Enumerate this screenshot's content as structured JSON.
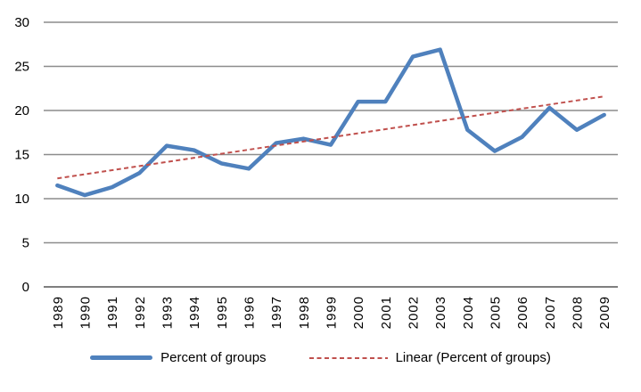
{
  "chart_data": {
    "type": "line",
    "title": "",
    "categories": [
      "1989",
      "1990",
      "1991",
      "1992",
      "1993",
      "1994",
      "1995",
      "1996",
      "1997",
      "1998",
      "1999",
      "2000",
      "2001",
      "2002",
      "2003",
      "2004",
      "2005",
      "2006",
      "2007",
      "2008",
      "2009"
    ],
    "x_tick_label_rotation": "vertical",
    "series": [
      {
        "name": "Percent of groups",
        "color": "#4F81BD",
        "line_style": "solid",
        "values": [
          11.5,
          10.4,
          11.3,
          12.9,
          16.0,
          15.5,
          14.0,
          13.4,
          16.3,
          16.8,
          16.1,
          21.0,
          21.0,
          26.1,
          26.9,
          17.8,
          15.4,
          17.0,
          20.3,
          17.8,
          19.5
        ]
      },
      {
        "name": "Linear (Percent of groups)",
        "color": "#C0504D",
        "line_style": "dashed",
        "trend_start": 12.3,
        "trend_end": 21.6
      }
    ],
    "ylim": [
      0,
      30
    ],
    "yticks": [
      0,
      5,
      10,
      15,
      20,
      25,
      30
    ],
    "grid": "horizontal",
    "legend_position": "bottom",
    "colors": {
      "gridline": "#8C8C8C",
      "axis_line": "#7F7F7F",
      "tick_text": "#000000",
      "background": "#FFFFFF"
    }
  }
}
